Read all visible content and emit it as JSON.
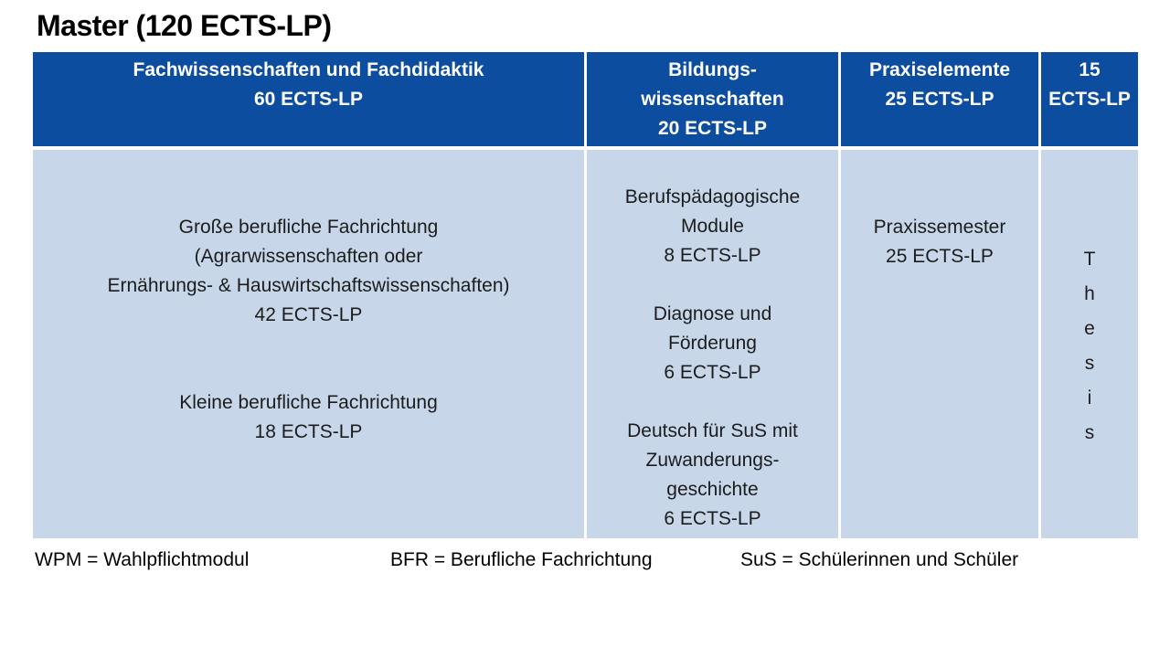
{
  "title": "Master (120 ECTS-LP)",
  "colors": {
    "header_bg": "#0d4da0",
    "header_text": "#ffffff",
    "body_bg": "#c7d7e9",
    "body_text": "#1c1c1c",
    "border": "#ffffff",
    "title_text": "#000000",
    "page_bg": "#ffffff"
  },
  "table": {
    "headers": [
      {
        "lines": [
          "Fachwissenschaften und Fachdidaktik",
          "60 ECTS-LP"
        ]
      },
      {
        "lines": [
          "Bildungs-",
          "wissenschaften",
          "20 ECTS-LP"
        ]
      },
      {
        "lines": [
          "Praxiselemente",
          "25 ECTS-LP"
        ]
      },
      {
        "lines": [
          "15",
          "ECTS-LP"
        ]
      }
    ],
    "cells": {
      "col1": {
        "block1": [
          "Große berufliche Fachrichtung",
          "(Agrarwissenschaften oder",
          "Ernährungs- & Hauswirtschaftswissenschaften)",
          "42 ECTS-LP"
        ],
        "block2": [
          "Kleine berufliche Fachrichtung",
          "18 ECTS-LP"
        ]
      },
      "col2": {
        "block1": [
          "Berufspädagogische",
          "Module",
          "8 ECTS-LP"
        ],
        "block2": [
          "Diagnose und",
          "Förderung",
          "6 ECTS-LP"
        ],
        "block3": [
          "Deutsch für SuS mit",
          "Zuwanderungs-",
          "geschichte",
          "6 ECTS-LP"
        ]
      },
      "col3": {
        "block1": [
          "Praxissemester",
          "25 ECTS-LP"
        ]
      },
      "col4": {
        "vertical_word": "Thesis"
      }
    }
  },
  "legend": {
    "items": [
      "WPM = Wahlpflichtmodul",
      "BFR = Berufliche Fachrichtung",
      "SuS = Schülerinnen und Schüler"
    ]
  }
}
